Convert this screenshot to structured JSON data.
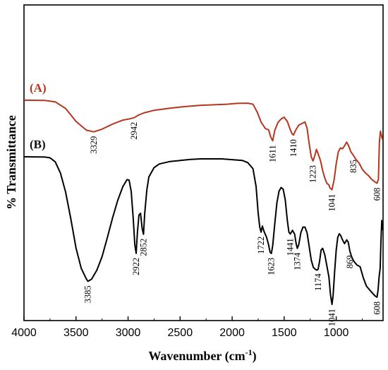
{
  "chart_data": {
    "type": "line",
    "xlabel": "Wavenumber (cm",
    "xlabel_sup": "-1",
    "xlabel_close": ")",
    "ylabel": "% Transmittance",
    "xlim": [
      4000,
      550
    ],
    "x_reversed": true,
    "ylim": [
      0,
      100
    ],
    "y_ticks_shown": false,
    "x_ticks": [
      {
        "value": 4000,
        "label": "4000"
      },
      {
        "value": 3500,
        "label": "3500"
      },
      {
        "value": 3000,
        "label": "3000"
      },
      {
        "value": 2500,
        "label": "2500"
      },
      {
        "value": 2000,
        "label": "2000"
      },
      {
        "value": 1500,
        "label": "1500"
      },
      {
        "value": 1000,
        "label": "1000"
      }
    ],
    "series": [
      {
        "name": "(A)",
        "color": "#b5361e",
        "points": [
          [
            4000,
            83.0
          ],
          [
            3800,
            82.9
          ],
          [
            3700,
            82.4
          ],
          [
            3600,
            79.9
          ],
          [
            3500,
            75.0
          ],
          [
            3400,
            71.7
          ],
          [
            3329,
            71.1
          ],
          [
            3250,
            72.1
          ],
          [
            3150,
            74.0
          ],
          [
            3050,
            75.5
          ],
          [
            2980,
            76.0
          ],
          [
            2942,
            76.4
          ],
          [
            2900,
            77.4
          ],
          [
            2850,
            78.2
          ],
          [
            2750,
            79.2
          ],
          [
            2600,
            80.0
          ],
          [
            2450,
            80.6
          ],
          [
            2300,
            81.1
          ],
          [
            2150,
            81.3
          ],
          [
            2050,
            81.5
          ],
          [
            1950,
            81.8
          ],
          [
            1850,
            81.9
          ],
          [
            1800,
            81.5
          ],
          [
            1760,
            78.6
          ],
          [
            1720,
            74.6
          ],
          [
            1680,
            72.3
          ],
          [
            1650,
            71.9
          ],
          [
            1630,
            69.2
          ],
          [
            1611,
            67.7
          ],
          [
            1590,
            71.7
          ],
          [
            1560,
            74.6
          ],
          [
            1530,
            75.9
          ],
          [
            1500,
            76.6
          ],
          [
            1470,
            75.0
          ],
          [
            1440,
            71.7
          ],
          [
            1420,
            70.1
          ],
          [
            1410,
            69.9
          ],
          [
            1390,
            71.7
          ],
          [
            1360,
            73.6
          ],
          [
            1330,
            74.2
          ],
          [
            1300,
            74.8
          ],
          [
            1280,
            72.5
          ],
          [
            1260,
            66.7
          ],
          [
            1240,
            61.7
          ],
          [
            1223,
            60.1
          ],
          [
            1205,
            62.2
          ],
          [
            1190,
            64.5
          ],
          [
            1170,
            62.4
          ],
          [
            1150,
            60.1
          ],
          [
            1130,
            56.5
          ],
          [
            1110,
            53.7
          ],
          [
            1090,
            51.7
          ],
          [
            1070,
            51.1
          ],
          [
            1060,
            49.9
          ],
          [
            1041,
            49.3
          ],
          [
            1020,
            53.1
          ],
          [
            1000,
            59.1
          ],
          [
            980,
            63.6
          ],
          [
            960,
            65.0
          ],
          [
            940,
            64.7
          ],
          [
            920,
            65.8
          ],
          [
            900,
            67.2
          ],
          [
            880,
            65.8
          ],
          [
            860,
            63.6
          ],
          [
            835,
            62.2
          ],
          [
            810,
            60.7
          ],
          [
            780,
            59.3
          ],
          [
            750,
            57.0
          ],
          [
            720,
            55.6
          ],
          [
            690,
            54.6
          ],
          [
            660,
            53.2
          ],
          [
            630,
            52.3
          ],
          [
            608,
            51.7
          ],
          [
            595,
            53.1
          ],
          [
            585,
            67.3
          ],
          [
            575,
            71.3
          ],
          [
            565,
            69.6
          ],
          [
            555,
            68.1
          ]
        ],
        "annotations": [
          {
            "x": 3329,
            "label": "3329"
          },
          {
            "x": 2942,
            "label": "2942"
          },
          {
            "x": 1611,
            "label": "1611"
          },
          {
            "x": 1410,
            "label": "1410"
          },
          {
            "x": 1223,
            "label": "1223"
          },
          {
            "x": 1041,
            "label": "1041"
          },
          {
            "x": 835,
            "label": "835"
          },
          {
            "x": 608,
            "label": "608"
          }
        ]
      },
      {
        "name": "(B)",
        "color": "#000000",
        "points": [
          [
            4000,
            61.7
          ],
          [
            3800,
            61.6
          ],
          [
            3750,
            61.3
          ],
          [
            3700,
            59.8
          ],
          [
            3650,
            55.6
          ],
          [
            3600,
            48.4
          ],
          [
            3550,
            38.3
          ],
          [
            3500,
            27.3
          ],
          [
            3450,
            19.7
          ],
          [
            3400,
            15.6
          ],
          [
            3385,
            14.8
          ],
          [
            3350,
            15.6
          ],
          [
            3300,
            19.0
          ],
          [
            3250,
            24.1
          ],
          [
            3200,
            31.1
          ],
          [
            3150,
            38.5
          ],
          [
            3100,
            45.2
          ],
          [
            3050,
            50.5
          ],
          [
            3010,
            53.1
          ],
          [
            2990,
            52.9
          ],
          [
            2970,
            48.6
          ],
          [
            2950,
            38.3
          ],
          [
            2935,
            28.6
          ],
          [
            2922,
            25.3
          ],
          [
            2910,
            33.3
          ],
          [
            2895,
            39.8
          ],
          [
            2880,
            40.4
          ],
          [
            2865,
            34.7
          ],
          [
            2852,
            32.5
          ],
          [
            2840,
            40.2
          ],
          [
            2820,
            49.1
          ],
          [
            2800,
            54.1
          ],
          [
            2750,
            57.6
          ],
          [
            2700,
            59.0
          ],
          [
            2600,
            59.9
          ],
          [
            2500,
            60.3
          ],
          [
            2400,
            60.7
          ],
          [
            2300,
            60.9
          ],
          [
            2200,
            60.9
          ],
          [
            2100,
            60.9
          ],
          [
            2000,
            60.6
          ],
          [
            1900,
            60.3
          ],
          [
            1850,
            59.5
          ],
          [
            1800,
            57.2
          ],
          [
            1770,
            50.5
          ],
          [
            1750,
            40.4
          ],
          [
            1735,
            35.2
          ],
          [
            1722,
            33.3
          ],
          [
            1710,
            35.6
          ],
          [
            1695,
            33.7
          ],
          [
            1670,
            31.4
          ],
          [
            1650,
            28.6
          ],
          [
            1635,
            25.7
          ],
          [
            1623,
            25.3
          ],
          [
            1610,
            28.3
          ],
          [
            1590,
            36.7
          ],
          [
            1570,
            44.3
          ],
          [
            1550,
            48.7
          ],
          [
            1530,
            50.1
          ],
          [
            1510,
            49.5
          ],
          [
            1490,
            45.6
          ],
          [
            1470,
            37.7
          ],
          [
            1455,
            33.3
          ],
          [
            1441,
            32.6
          ],
          [
            1420,
            34.0
          ],
          [
            1400,
            32.6
          ],
          [
            1385,
            29.0
          ],
          [
            1374,
            27.2
          ],
          [
            1360,
            28.6
          ],
          [
            1340,
            33.0
          ],
          [
            1320,
            35.2
          ],
          [
            1300,
            35.2
          ],
          [
            1280,
            33.0
          ],
          [
            1260,
            28.0
          ],
          [
            1240,
            22.8
          ],
          [
            1220,
            20.0
          ],
          [
            1200,
            19.3
          ],
          [
            1185,
            19.0
          ],
          [
            1174,
            19.3
          ],
          [
            1160,
            22.3
          ],
          [
            1145,
            26.6
          ],
          [
            1130,
            27.2
          ],
          [
            1110,
            24.8
          ],
          [
            1090,
            20.7
          ],
          [
            1070,
            16.3
          ],
          [
            1055,
            9.7
          ],
          [
            1041,
            6.1
          ],
          [
            1030,
            9.5
          ],
          [
            1015,
            18.6
          ],
          [
            1000,
            26.6
          ],
          [
            985,
            31.4
          ],
          [
            970,
            32.7
          ],
          [
            955,
            31.9
          ],
          [
            940,
            30.4
          ],
          [
            920,
            29.0
          ],
          [
            900,
            30.4
          ],
          [
            885,
            29.6
          ],
          [
            869,
            26.2
          ],
          [
            850,
            23.8
          ],
          [
            830,
            22.3
          ],
          [
            800,
            20.9
          ],
          [
            770,
            20.3
          ],
          [
            740,
            16.1
          ],
          [
            710,
            13.0
          ],
          [
            680,
            11.6
          ],
          [
            650,
            10.3
          ],
          [
            630,
            9.4
          ],
          [
            608,
            8.8
          ],
          [
            598,
            11.4
          ],
          [
            588,
            16.5
          ],
          [
            578,
            19.7
          ],
          [
            570,
            29.8
          ],
          [
            562,
            37.7
          ],
          [
            556,
            34.1
          ]
        ],
        "annotations": [
          {
            "x": 3385,
            "label": "3385"
          },
          {
            "x": 2922,
            "label": "2922"
          },
          {
            "x": 2852,
            "label": "2852"
          },
          {
            "x": 1722,
            "label": "1722"
          },
          {
            "x": 1623,
            "label": "1623"
          },
          {
            "x": 1441,
            "label": "1441"
          },
          {
            "x": 1374,
            "label": "1374"
          },
          {
            "x": 1174,
            "label": "1174"
          },
          {
            "x": 1041,
            "label": "1041"
          },
          {
            "x": 869,
            "label": "869"
          },
          {
            "x": 608,
            "label": "608"
          }
        ]
      }
    ]
  }
}
